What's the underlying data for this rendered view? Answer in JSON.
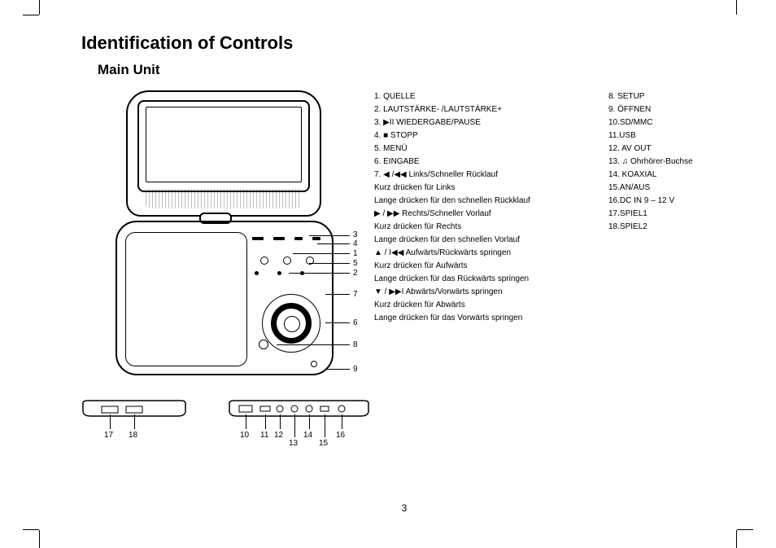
{
  "title": "Identification of Controls",
  "subtitle": "Main Unit",
  "page_number": "3",
  "callouts": [
    "1",
    "2",
    "3",
    "4",
    "5",
    "6",
    "7",
    "8",
    "9"
  ],
  "side_callouts_left": [
    "17",
    "18"
  ],
  "side_callouts_right": [
    "10",
    "11",
    "12",
    "13",
    "14",
    "15",
    "16"
  ],
  "legend_left": [
    "1. QUELLE",
    "2. LAUTSTÄRKE- /LAUTSTÄRKE+",
    "3. ▶II  WIEDERGABE/PAUSE",
    "4. ■ STOPP",
    "5. MENÜ",
    "6. EINGABE",
    "7. ◀ /◀◀ Links/Schneller Rücklauf",
    "Kurz drücken für Links",
    "Lange drücken für den schnellen Rückklauf",
    "  ▶ / ▶▶ Rechts/Schneller Vorlauf",
    "Kurz drücken für Rechts",
    "Lange drücken für den schnellen Vorlauf",
    "  ▲ / I◀◀ Aufwärts/Rückwärts springen",
    "Kurz drücken für Aufwärts",
    "Lange drücken für das Rückwärts springen",
    "  ▼ / ▶▶I Abwärts/Vorwärts springen",
    "Kurz drücken für Abwärts",
    "Lange drücken für das Vorwärts springen"
  ],
  "legend_right": [
    "8. SETUP",
    "9. ÖFFNEN",
    "10.SD/MMC",
    "11.USB",
    "12. AV OUT",
    "13. ♫ Ohrhörer-Buchse",
    "14. KOAXIAL",
    "15.AN/AUS",
    "16.DC IN 9 – 12 V",
    "17.SPIEL1",
    "18.SPIEL2"
  ],
  "colors": {
    "fg": "#000000",
    "bg": "#ffffff"
  }
}
